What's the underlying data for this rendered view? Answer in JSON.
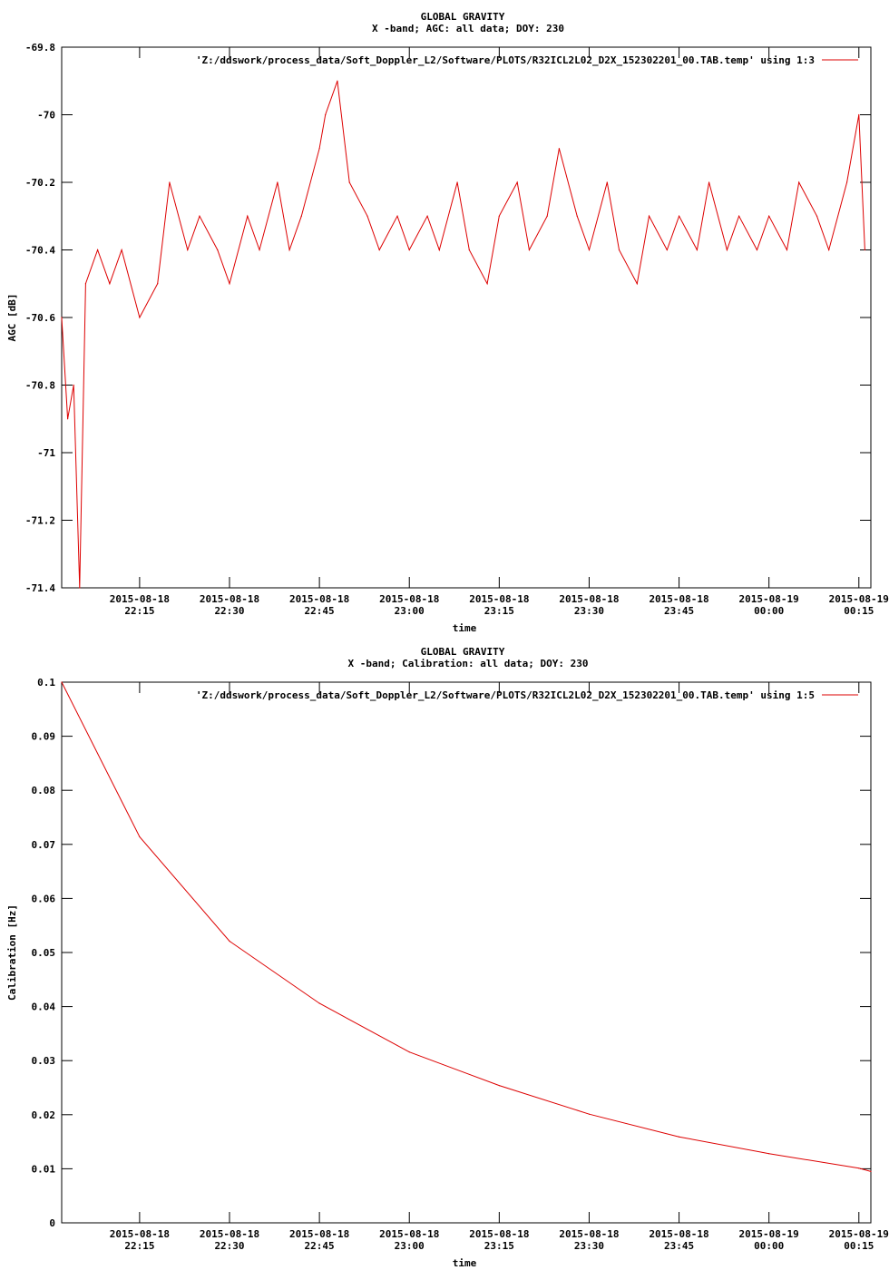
{
  "chart_data": [
    {
      "type": "line",
      "title": "GLOBAL GRAVITY",
      "subtitle": "X -band; AGC: all data; DOY: 230",
      "xlabel": "time",
      "ylabel": "AGC [dB]",
      "ylim": [
        -71.4,
        -69.8
      ],
      "y_ticks": [
        "-69.8",
        "-70",
        "-70.2",
        "-70.4",
        "-70.6",
        "-70.8",
        "-71",
        "-71.2",
        "-71.4"
      ],
      "y_tick_values": [
        -69.8,
        -70,
        -70.2,
        -70.4,
        -70.6,
        -70.8,
        -71,
        -71.2,
        -71.4
      ],
      "xlim": [
        "2015-08-18 22:02",
        "2015-08-19 00:17"
      ],
      "x_ticks": [
        {
          "date": "2015-08-18",
          "time": "22:15",
          "value": "2015-08-18 22:15"
        },
        {
          "date": "2015-08-18",
          "time": "22:30",
          "value": "2015-08-18 22:30"
        },
        {
          "date": "2015-08-18",
          "time": "22:45",
          "value": "2015-08-18 22:45"
        },
        {
          "date": "2015-08-18",
          "time": "23:00",
          "value": "2015-08-18 23:00"
        },
        {
          "date": "2015-08-18",
          "time": "23:15",
          "value": "2015-08-18 23:15"
        },
        {
          "date": "2015-08-18",
          "time": "23:30",
          "value": "2015-08-18 23:30"
        },
        {
          "date": "2015-08-18",
          "time": "23:45",
          "value": "2015-08-18 23:45"
        },
        {
          "date": "2015-08-19",
          "time": "00:00",
          "value": "2015-08-19 00:00"
        },
        {
          "date": "2015-08-19",
          "time": "00:15",
          "value": "2015-08-19 00:15"
        }
      ],
      "grid": false,
      "legend_position": "top-right",
      "series": [
        {
          "name": "'Z:/ddswork/process_data/Soft_Doppler_L2/Software/PLOTS/R32ICL2L02_D2X_152302201_00.TAB.temp' using 1:3",
          "color": "#dd0000",
          "x": [
            "2015-08-18 22:02",
            "2015-08-18 22:03",
            "2015-08-18 22:04",
            "2015-08-18 22:05",
            "2015-08-18 22:06",
            "2015-08-18 22:08",
            "2015-08-18 22:10",
            "2015-08-18 22:12",
            "2015-08-18 22:15",
            "2015-08-18 22:18",
            "2015-08-18 22:20",
            "2015-08-18 22:23",
            "2015-08-18 22:25",
            "2015-08-18 22:28",
            "2015-08-18 22:30",
            "2015-08-18 22:33",
            "2015-08-18 22:35",
            "2015-08-18 22:38",
            "2015-08-18 22:40",
            "2015-08-18 22:42",
            "2015-08-18 22:45",
            "2015-08-18 22:46",
            "2015-08-18 22:48",
            "2015-08-18 22:50",
            "2015-08-18 22:53",
            "2015-08-18 22:55",
            "2015-08-18 22:58",
            "2015-08-18 23:00",
            "2015-08-18 23:03",
            "2015-08-18 23:05",
            "2015-08-18 23:08",
            "2015-08-18 23:10",
            "2015-08-18 23:13",
            "2015-08-18 23:15",
            "2015-08-18 23:18",
            "2015-08-18 23:20",
            "2015-08-18 23:23",
            "2015-08-18 23:25",
            "2015-08-18 23:28",
            "2015-08-18 23:30",
            "2015-08-18 23:33",
            "2015-08-18 23:35",
            "2015-08-18 23:38",
            "2015-08-18 23:40",
            "2015-08-18 23:43",
            "2015-08-18 23:45",
            "2015-08-18 23:48",
            "2015-08-18 23:50",
            "2015-08-18 23:53",
            "2015-08-18 23:55",
            "2015-08-18 23:58",
            "2015-08-19 00:00",
            "2015-08-19 00:03",
            "2015-08-19 00:05",
            "2015-08-19 00:08",
            "2015-08-19 00:10",
            "2015-08-19 00:13",
            "2015-08-19 00:15",
            "2015-08-19 00:16"
          ],
          "values": [
            -70.6,
            -70.9,
            -70.8,
            -71.4,
            -70.5,
            -70.4,
            -70.5,
            -70.4,
            -70.6,
            -70.5,
            -70.2,
            -70.4,
            -70.3,
            -70.4,
            -70.5,
            -70.3,
            -70.4,
            -70.2,
            -70.4,
            -70.3,
            -70.1,
            -70.0,
            -69.9,
            -70.2,
            -70.3,
            -70.4,
            -70.3,
            -70.4,
            -70.3,
            -70.4,
            -70.2,
            -70.4,
            -70.5,
            -70.3,
            -70.2,
            -70.4,
            -70.3,
            -70.1,
            -70.3,
            -70.4,
            -70.2,
            -70.4,
            -70.5,
            -70.3,
            -70.4,
            -70.3,
            -70.4,
            -70.2,
            -70.4,
            -70.3,
            -70.4,
            -70.3,
            -70.4,
            -70.2,
            -70.3,
            -70.4,
            -70.2,
            -70.0,
            -70.4
          ]
        }
      ]
    },
    {
      "type": "line",
      "title": "GLOBAL GRAVITY",
      "subtitle": "X -band; Calibration: all data; DOY: 230",
      "xlabel": "time",
      "ylabel": "Calibration [Hz]",
      "ylim": [
        0,
        0.1
      ],
      "y_ticks": [
        "0.1",
        "0.09",
        "0.08",
        "0.07",
        "0.06",
        "0.05",
        "0.04",
        "0.03",
        "0.02",
        "0.01",
        "0"
      ],
      "y_tick_values": [
        0.1,
        0.09,
        0.08,
        0.07,
        0.06,
        0.05,
        0.04,
        0.03,
        0.02,
        0.01,
        0
      ],
      "xlim": [
        "2015-08-18 22:02",
        "2015-08-19 00:17"
      ],
      "x_ticks": [
        {
          "date": "2015-08-18",
          "time": "22:15",
          "value": "2015-08-18 22:15"
        },
        {
          "date": "2015-08-18",
          "time": "22:30",
          "value": "2015-08-18 22:30"
        },
        {
          "date": "2015-08-18",
          "time": "22:45",
          "value": "2015-08-18 22:45"
        },
        {
          "date": "2015-08-18",
          "time": "23:00",
          "value": "2015-08-18 23:00"
        },
        {
          "date": "2015-08-18",
          "time": "23:15",
          "value": "2015-08-18 23:15"
        },
        {
          "date": "2015-08-18",
          "time": "23:30",
          "value": "2015-08-18 23:30"
        },
        {
          "date": "2015-08-18",
          "time": "23:45",
          "value": "2015-08-18 23:45"
        },
        {
          "date": "2015-08-19",
          "time": "00:00",
          "value": "2015-08-19 00:00"
        },
        {
          "date": "2015-08-19",
          "time": "00:15",
          "value": "2015-08-19 00:15"
        }
      ],
      "grid": false,
      "legend_position": "top-right",
      "series": [
        {
          "name": "'Z:/ddswork/process_data/Soft_Doppler_L2/Software/PLOTS/R32ICL2L02_D2X_152302201_00.TAB.temp' using 1:5",
          "color": "#dd0000",
          "x": [
            "2015-08-18 22:02",
            "2015-08-18 22:15",
            "2015-08-18 22:30",
            "2015-08-18 22:45",
            "2015-08-18 23:00",
            "2015-08-18 23:15",
            "2015-08-18 23:30",
            "2015-08-18 23:45",
            "2015-08-19 00:00",
            "2015-08-19 00:15",
            "2015-08-19 00:17"
          ],
          "values": [
            0.1,
            0.0714,
            0.0521,
            0.0406,
            0.0316,
            0.0254,
            0.0201,
            0.0159,
            0.0128,
            0.0101,
            0.0095
          ]
        }
      ]
    }
  ]
}
